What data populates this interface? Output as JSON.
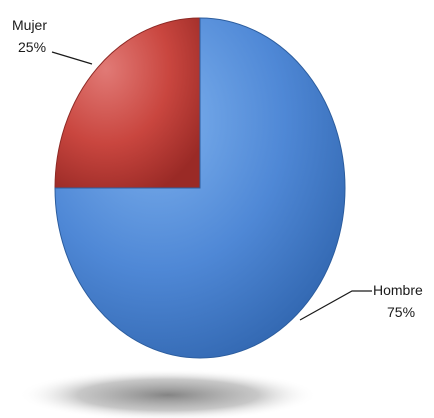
{
  "chart_data": {
    "type": "pie",
    "title": "",
    "slices": [
      {
        "label": "Mujer",
        "value": 25,
        "display": "25%",
        "color": "#c0504d"
      },
      {
        "label": "Hombre",
        "value": 75,
        "display": "75%",
        "color": "#4f81bd"
      }
    ],
    "start_angle_degrees": 0,
    "direction": "counterclockwise",
    "legend": "none",
    "style": "3d-tilted-with-shadow"
  }
}
